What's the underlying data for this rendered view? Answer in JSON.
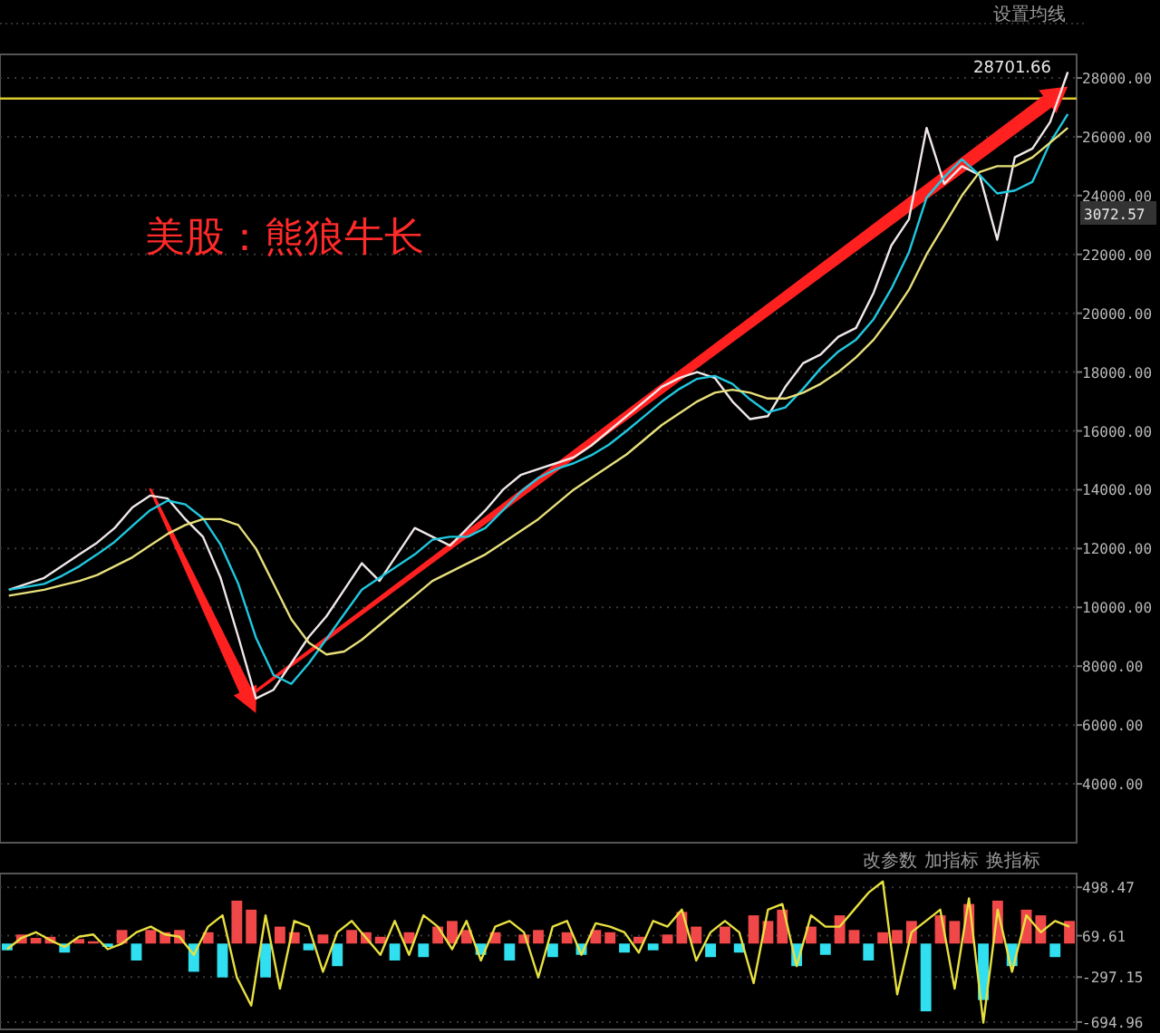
{
  "chart_data": [
    {
      "type": "line",
      "annotations": [
        "美股：熊狼牛长",
        "28701.66",
        "3072.57",
        "设置均线"
      ],
      "categories": [
        null,
        null,
        null,
        null,
        null,
        null,
        null,
        null,
        null,
        null,
        null,
        null,
        null,
        null,
        null,
        null,
        null,
        null,
        null,
        null,
        null,
        null,
        null,
        null,
        null,
        null,
        null,
        null,
        null,
        null,
        null,
        null,
        null,
        null,
        null,
        null,
        null,
        null,
        null,
        null,
        null,
        null,
        null,
        null,
        null,
        null,
        null,
        null,
        null,
        null,
        null,
        null,
        null,
        null,
        null,
        null,
        null,
        null,
        null,
        null,
        null
      ],
      "series": [
        {
          "color": "#f0e8e8",
          "values": [
            10600,
            10800,
            11000,
            11400,
            11800,
            12200,
            12700,
            13400,
            13800,
            13700,
            13000,
            12400,
            11000,
            9000,
            6900,
            7200,
            8100,
            9000,
            9700,
            10600,
            11500,
            10900,
            11800,
            12700,
            12400,
            12100,
            12700,
            13300,
            14000,
            14500,
            14700,
            14900,
            15100,
            15500,
            16000,
            16500,
            17000,
            17500,
            17800,
            18000,
            17800,
            17000,
            16400,
            16500,
            17500,
            18300,
            18600,
            19200,
            19500,
            20700,
            22300,
            23200,
            26300,
            24400,
            25000,
            24700,
            22500,
            25300,
            25600,
            26500,
            28200
          ]
        },
        {
          "color": "#20c8e0",
          "values": [
            10600,
            10700,
            10800,
            11070,
            11400,
            11800,
            12230,
            12770,
            13300,
            13630,
            13500,
            13030,
            12130,
            10800,
            8970,
            7700,
            7400,
            8100,
            8930,
            9770,
            10600,
            11000,
            11400,
            11800,
            12300,
            12400,
            12400,
            12700,
            13300,
            13930,
            14400,
            14700,
            14900,
            15170,
            15530,
            16000,
            16500,
            17000,
            17430,
            17770,
            17870,
            17600,
            17070,
            16630,
            16800,
            17430,
            18130,
            18700,
            19100,
            19800,
            20830,
            22070,
            23930,
            24630,
            25230,
            24700,
            24070,
            24170,
            24470,
            25800,
            26770
          ]
        },
        {
          "color": "#e8e07a",
          "values": [
            10400,
            10500,
            10600,
            10750,
            10900,
            11100,
            11400,
            11700,
            12100,
            12500,
            12800,
            13000,
            13000,
            12800,
            12000,
            10800,
            9600,
            8800,
            8400,
            8500,
            8900,
            9400,
            9900,
            10400,
            10900,
            11200,
            11500,
            11800,
            12200,
            12600,
            13000,
            13500,
            14000,
            14400,
            14800,
            15200,
            15700,
            16200,
            16600,
            17000,
            17300,
            17400,
            17300,
            17100,
            17100,
            17300,
            17600,
            18000,
            18500,
            19100,
            19900,
            20800,
            22000,
            23000,
            24000,
            24800,
            25000,
            25000,
            25300,
            25800,
            26300
          ]
        }
      ],
      "ylim": [
        2000,
        28800
      ],
      "yticks": [
        {
          "value": 4000,
          "label": "4000.00"
        },
        {
          "value": 6000,
          "label": "6000.00"
        },
        {
          "value": 8000,
          "label": "8000.00"
        },
        {
          "value": 10000,
          "label": "10000.00"
        },
        {
          "value": 12000,
          "label": "12000.00"
        },
        {
          "value": 14000,
          "label": "14000.00"
        },
        {
          "value": 16000,
          "label": "16000.00"
        },
        {
          "value": 18000,
          "label": "18000.00"
        },
        {
          "value": 20000,
          "label": "20000.00"
        },
        {
          "value": 22000,
          "label": "22000.00"
        },
        {
          "value": 24000,
          "label": "24000.00"
        },
        {
          "value": 26000,
          "label": "26000.00"
        },
        {
          "value": 28000,
          "label": "28000.00"
        }
      ],
      "grid": "y",
      "ref_lines": [
        {
          "axis": "y",
          "value": 27300,
          "color": "#d8c830"
        }
      ]
    },
    {
      "type": "bar",
      "annotations": [
        "改参数",
        "加指标",
        "换指标"
      ],
      "categories": [
        null,
        null,
        null,
        null,
        null,
        null,
        null,
        null,
        null,
        null,
        null,
        null,
        null,
        null,
        null,
        null,
        null,
        null,
        null,
        null,
        null,
        null,
        null,
        null,
        null,
        null,
        null,
        null,
        null,
        null,
        null,
        null,
        null,
        null,
        null,
        null,
        null,
        null,
        null,
        null,
        null,
        null,
        null,
        null,
        null,
        null,
        null,
        null,
        null,
        null,
        null,
        null,
        null,
        null,
        null,
        null,
        null,
        null,
        null,
        null,
        null,
        null,
        null,
        null,
        null,
        null,
        null,
        null,
        null,
        null,
        null,
        null,
        null,
        null,
        null
      ],
      "series": [
        {
          "color": "#f04848",
          "values": [
            null,
            80,
            50,
            60,
            null,
            40,
            20,
            null,
            120,
            null,
            120,
            100,
            120,
            null,
            100,
            null,
            380,
            300,
            null,
            150,
            100,
            null,
            80,
            null,
            120,
            100,
            60,
            null,
            100,
            null,
            150,
            200,
            120,
            null,
            100,
            null,
            80,
            120,
            null,
            100,
            null,
            120,
            100,
            null,
            60,
            null,
            80,
            280,
            150,
            null,
            150,
            null,
            250,
            200,
            300,
            null,
            150,
            null,
            250,
            120,
            null,
            100,
            120,
            200,
            null,
            250,
            200,
            350,
            null,
            380,
            null,
            300,
            250,
            null,
            200
          ]
        },
        {
          "color": "#30e0f0",
          "values": [
            -60,
            null,
            null,
            null,
            -80,
            null,
            null,
            -30,
            null,
            -150,
            null,
            null,
            null,
            -250,
            null,
            -300,
            null,
            null,
            -300,
            null,
            null,
            -60,
            null,
            -200,
            null,
            null,
            null,
            -150,
            null,
            -120,
            null,
            null,
            null,
            -100,
            null,
            -150,
            null,
            null,
            -120,
            null,
            -100,
            null,
            null,
            -80,
            null,
            -60,
            null,
            null,
            null,
            -120,
            null,
            -80,
            null,
            null,
            null,
            -200,
            null,
            -100,
            null,
            null,
            -150,
            null,
            null,
            null,
            -600,
            null,
            null,
            null,
            -500,
            null,
            -200,
            null,
            null,
            -120,
            null
          ]
        },
        {
          "type": "line",
          "color": "#e8e040",
          "values": [
            -50,
            50,
            100,
            30,
            -30,
            60,
            80,
            -50,
            0,
            100,
            150,
            80,
            60,
            -100,
            150,
            250,
            -300,
            -550,
            250,
            -400,
            200,
            150,
            -250,
            100,
            200,
            50,
            -100,
            200,
            -100,
            250,
            150,
            -50,
            200,
            -150,
            150,
            200,
            100,
            -300,
            150,
            200,
            -100,
            180,
            150,
            100,
            -80,
            200,
            150,
            300,
            -150,
            100,
            200,
            100,
            -350,
            300,
            350,
            -200,
            250,
            150,
            150,
            300,
            450,
            550,
            -450,
            100,
            200,
            300,
            -400,
            400,
            -700,
            300,
            -250,
            250,
            100,
            200,
            150
          ]
        }
      ],
      "ylim": [
        -760,
        620
      ],
      "yticks": [
        498.47,
        69.61,
        -297.15,
        -694.96
      ],
      "grid": "y"
    }
  ]
}
